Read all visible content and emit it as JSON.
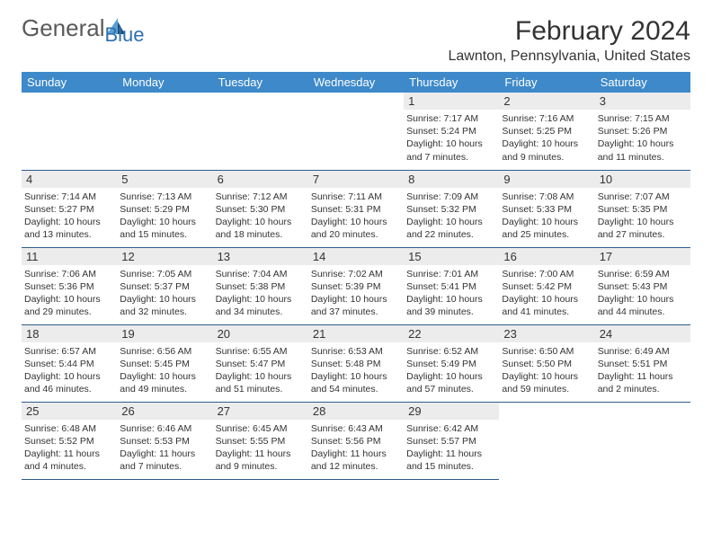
{
  "brand": {
    "word1": "General",
    "word2": "Blue"
  },
  "title": "February 2024",
  "location": "Lawnton, Pennsylvania, United States",
  "colors": {
    "header_bg": "#3d89c9",
    "header_text": "#ffffff",
    "daynum_bg": "#ececec",
    "rule": "#2f5d8a",
    "text": "#333333",
    "logo_gray": "#5a5a5a",
    "logo_blue": "#2f6fb0",
    "sail_light": "#5a9fd4",
    "sail_dark": "#1f4e7a"
  },
  "weekdays": [
    "Sunday",
    "Monday",
    "Tuesday",
    "Wednesday",
    "Thursday",
    "Friday",
    "Saturday"
  ],
  "first_weekday_index": 4,
  "days": [
    {
      "n": 1,
      "sr": "7:17 AM",
      "ss": "5:24 PM",
      "dl": "10 hours and 7 minutes."
    },
    {
      "n": 2,
      "sr": "7:16 AM",
      "ss": "5:25 PM",
      "dl": "10 hours and 9 minutes."
    },
    {
      "n": 3,
      "sr": "7:15 AM",
      "ss": "5:26 PM",
      "dl": "10 hours and 11 minutes."
    },
    {
      "n": 4,
      "sr": "7:14 AM",
      "ss": "5:27 PM",
      "dl": "10 hours and 13 minutes."
    },
    {
      "n": 5,
      "sr": "7:13 AM",
      "ss": "5:29 PM",
      "dl": "10 hours and 15 minutes."
    },
    {
      "n": 6,
      "sr": "7:12 AM",
      "ss": "5:30 PM",
      "dl": "10 hours and 18 minutes."
    },
    {
      "n": 7,
      "sr": "7:11 AM",
      "ss": "5:31 PM",
      "dl": "10 hours and 20 minutes."
    },
    {
      "n": 8,
      "sr": "7:09 AM",
      "ss": "5:32 PM",
      "dl": "10 hours and 22 minutes."
    },
    {
      "n": 9,
      "sr": "7:08 AM",
      "ss": "5:33 PM",
      "dl": "10 hours and 25 minutes."
    },
    {
      "n": 10,
      "sr": "7:07 AM",
      "ss": "5:35 PM",
      "dl": "10 hours and 27 minutes."
    },
    {
      "n": 11,
      "sr": "7:06 AM",
      "ss": "5:36 PM",
      "dl": "10 hours and 29 minutes."
    },
    {
      "n": 12,
      "sr": "7:05 AM",
      "ss": "5:37 PM",
      "dl": "10 hours and 32 minutes."
    },
    {
      "n": 13,
      "sr": "7:04 AM",
      "ss": "5:38 PM",
      "dl": "10 hours and 34 minutes."
    },
    {
      "n": 14,
      "sr": "7:02 AM",
      "ss": "5:39 PM",
      "dl": "10 hours and 37 minutes."
    },
    {
      "n": 15,
      "sr": "7:01 AM",
      "ss": "5:41 PM",
      "dl": "10 hours and 39 minutes."
    },
    {
      "n": 16,
      "sr": "7:00 AM",
      "ss": "5:42 PM",
      "dl": "10 hours and 41 minutes."
    },
    {
      "n": 17,
      "sr": "6:59 AM",
      "ss": "5:43 PM",
      "dl": "10 hours and 44 minutes."
    },
    {
      "n": 18,
      "sr": "6:57 AM",
      "ss": "5:44 PM",
      "dl": "10 hours and 46 minutes."
    },
    {
      "n": 19,
      "sr": "6:56 AM",
      "ss": "5:45 PM",
      "dl": "10 hours and 49 minutes."
    },
    {
      "n": 20,
      "sr": "6:55 AM",
      "ss": "5:47 PM",
      "dl": "10 hours and 51 minutes."
    },
    {
      "n": 21,
      "sr": "6:53 AM",
      "ss": "5:48 PM",
      "dl": "10 hours and 54 minutes."
    },
    {
      "n": 22,
      "sr": "6:52 AM",
      "ss": "5:49 PM",
      "dl": "10 hours and 57 minutes."
    },
    {
      "n": 23,
      "sr": "6:50 AM",
      "ss": "5:50 PM",
      "dl": "10 hours and 59 minutes."
    },
    {
      "n": 24,
      "sr": "6:49 AM",
      "ss": "5:51 PM",
      "dl": "11 hours and 2 minutes."
    },
    {
      "n": 25,
      "sr": "6:48 AM",
      "ss": "5:52 PM",
      "dl": "11 hours and 4 minutes."
    },
    {
      "n": 26,
      "sr": "6:46 AM",
      "ss": "5:53 PM",
      "dl": "11 hours and 7 minutes."
    },
    {
      "n": 27,
      "sr": "6:45 AM",
      "ss": "5:55 PM",
      "dl": "11 hours and 9 minutes."
    },
    {
      "n": 28,
      "sr": "6:43 AM",
      "ss": "5:56 PM",
      "dl": "11 hours and 12 minutes."
    },
    {
      "n": 29,
      "sr": "6:42 AM",
      "ss": "5:57 PM",
      "dl": "11 hours and 15 minutes."
    }
  ],
  "labels": {
    "sunrise": "Sunrise:",
    "sunset": "Sunset:",
    "daylight": "Daylight:"
  }
}
